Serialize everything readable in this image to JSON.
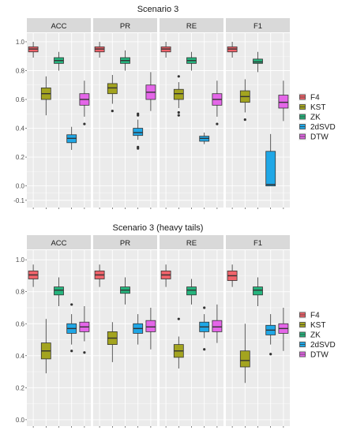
{
  "chart_data": [
    {
      "type": "box",
      "title": "Scenario 3",
      "facets": [
        "ACC",
        "PR",
        "RE",
        "F1"
      ],
      "methods": [
        "F4",
        "KST",
        "ZK",
        "2dSVD",
        "DTW"
      ],
      "ylim": [
        -0.15,
        1.06
      ],
      "yticks": [
        "-0.1",
        "0.0",
        "0.2",
        "0.4",
        "0.6",
        "0.8",
        "1.0"
      ],
      "boxes": {
        "ACC": [
          {
            "min": 0.89,
            "q1": 0.93,
            "median": 0.95,
            "q3": 0.965,
            "max": 1.0,
            "outliers": []
          },
          {
            "min": 0.49,
            "q1": 0.6,
            "median": 0.64,
            "q3": 0.68,
            "max": 0.76,
            "outliers": []
          },
          {
            "min": 0.8,
            "q1": 0.85,
            "median": 0.87,
            "q3": 0.89,
            "max": 0.93,
            "outliers": []
          },
          {
            "min": 0.25,
            "q1": 0.3,
            "median": 0.33,
            "q3": 0.355,
            "max": 0.41,
            "outliers": []
          },
          {
            "min": 0.48,
            "q1": 0.56,
            "median": 0.6,
            "q3": 0.64,
            "max": 0.73,
            "outliers": [
              0.43
            ]
          }
        ],
        "PR": [
          {
            "min": 0.89,
            "q1": 0.93,
            "median": 0.95,
            "q3": 0.965,
            "max": 1.0,
            "outliers": []
          },
          {
            "min": 0.57,
            "q1": 0.64,
            "median": 0.68,
            "q3": 0.71,
            "max": 0.77,
            "outliers": [
              0.52
            ]
          },
          {
            "min": 0.8,
            "q1": 0.85,
            "median": 0.87,
            "q3": 0.89,
            "max": 0.94,
            "outliers": []
          },
          {
            "min": 0.32,
            "q1": 0.35,
            "median": 0.37,
            "q3": 0.4,
            "max": 0.46,
            "outliers": [
              0.49,
              0.5,
              0.27,
              0.26
            ]
          },
          {
            "min": 0.52,
            "q1": 0.6,
            "median": 0.65,
            "q3": 0.7,
            "max": 0.79,
            "outliers": []
          }
        ],
        "RE": [
          {
            "min": 0.89,
            "q1": 0.93,
            "median": 0.95,
            "q3": 0.965,
            "max": 1.0,
            "outliers": []
          },
          {
            "min": 0.54,
            "q1": 0.6,
            "median": 0.64,
            "q3": 0.67,
            "max": 0.72,
            "outliers": [
              0.76,
              0.51,
              0.49
            ]
          },
          {
            "min": 0.8,
            "q1": 0.85,
            "median": 0.87,
            "q3": 0.89,
            "max": 0.93,
            "outliers": []
          },
          {
            "min": 0.29,
            "q1": 0.31,
            "median": 0.33,
            "q3": 0.345,
            "max": 0.37,
            "outliers": []
          },
          {
            "min": 0.48,
            "q1": 0.56,
            "median": 0.6,
            "q3": 0.64,
            "max": 0.73,
            "outliers": [
              0.43
            ]
          }
        ],
        "F1": [
          {
            "min": 0.89,
            "q1": 0.93,
            "median": 0.95,
            "q3": 0.965,
            "max": 1.0,
            "outliers": []
          },
          {
            "min": 0.51,
            "q1": 0.58,
            "median": 0.62,
            "q3": 0.66,
            "max": 0.74,
            "outliers": [
              0.46
            ]
          },
          {
            "min": 0.79,
            "q1": 0.85,
            "median": 0.86,
            "q3": 0.88,
            "max": 0.93,
            "outliers": []
          },
          {
            "min": 0.0,
            "q1": 0.0,
            "median": 0.01,
            "q3": 0.24,
            "max": 0.36,
            "outliers": []
          },
          {
            "min": 0.45,
            "q1": 0.54,
            "median": 0.58,
            "q3": 0.63,
            "max": 0.73,
            "outliers": []
          }
        ]
      }
    },
    {
      "type": "box",
      "title": "Scenario 3 (heavy tails)",
      "facets": [
        "ACC",
        "PR",
        "RE",
        "F1"
      ],
      "methods": [
        "F4",
        "KST",
        "ZK",
        "2dSVD",
        "DTW"
      ],
      "ylim": [
        -0.04,
        1.06
      ],
      "yticks": [
        "0.0",
        "0.2",
        "0.4",
        "0.6",
        "0.8",
        "1.0"
      ],
      "boxes": {
        "ACC": [
          {
            "min": 0.83,
            "q1": 0.88,
            "median": 0.905,
            "q3": 0.93,
            "max": 0.97,
            "outliers": []
          },
          {
            "min": 0.29,
            "q1": 0.38,
            "median": 0.43,
            "q3": 0.48,
            "max": 0.63,
            "outliers": []
          },
          {
            "min": 0.71,
            "q1": 0.78,
            "median": 0.81,
            "q3": 0.83,
            "max": 0.89,
            "outliers": []
          },
          {
            "min": 0.47,
            "q1": 0.54,
            "median": 0.57,
            "q3": 0.6,
            "max": 0.66,
            "outliers": [
              0.72,
              0.43
            ]
          },
          {
            "min": 0.49,
            "q1": 0.55,
            "median": 0.58,
            "q3": 0.61,
            "max": 0.71,
            "outliers": [
              0.42
            ]
          }
        ],
        "PR": [
          {
            "min": 0.83,
            "q1": 0.88,
            "median": 0.905,
            "q3": 0.93,
            "max": 0.97,
            "outliers": []
          },
          {
            "min": 0.36,
            "q1": 0.47,
            "median": 0.51,
            "q3": 0.55,
            "max": 0.61,
            "outliers": []
          },
          {
            "min": 0.72,
            "q1": 0.79,
            "median": 0.81,
            "q3": 0.83,
            "max": 0.89,
            "outliers": []
          },
          {
            "min": 0.47,
            "q1": 0.54,
            "median": 0.57,
            "q3": 0.6,
            "max": 0.66,
            "outliers": []
          },
          {
            "min": 0.44,
            "q1": 0.55,
            "median": 0.58,
            "q3": 0.62,
            "max": 0.7,
            "outliers": []
          }
        ],
        "RE": [
          {
            "min": 0.83,
            "q1": 0.88,
            "median": 0.905,
            "q3": 0.93,
            "max": 0.97,
            "outliers": []
          },
          {
            "min": 0.32,
            "q1": 0.39,
            "median": 0.43,
            "q3": 0.47,
            "max": 0.52,
            "outliers": [
              0.63
            ]
          },
          {
            "min": 0.72,
            "q1": 0.78,
            "median": 0.81,
            "q3": 0.83,
            "max": 0.88,
            "outliers": []
          },
          {
            "min": 0.51,
            "q1": 0.55,
            "median": 0.58,
            "q3": 0.61,
            "max": 0.66,
            "outliers": [
              0.7,
              0.44
            ]
          },
          {
            "min": 0.48,
            "q1": 0.55,
            "median": 0.58,
            "q3": 0.62,
            "max": 0.72,
            "outliers": []
          }
        ],
        "F1": [
          {
            "min": 0.83,
            "q1": 0.87,
            "median": 0.9,
            "q3": 0.93,
            "max": 0.97,
            "outliers": []
          },
          {
            "min": 0.23,
            "q1": 0.33,
            "median": 0.37,
            "q3": 0.43,
            "max": 0.6,
            "outliers": []
          },
          {
            "min": 0.71,
            "q1": 0.78,
            "median": 0.81,
            "q3": 0.83,
            "max": 0.89,
            "outliers": []
          },
          {
            "min": 0.47,
            "q1": 0.53,
            "median": 0.56,
            "q3": 0.59,
            "max": 0.66,
            "outliers": [
              0.41
            ]
          },
          {
            "min": 0.43,
            "q1": 0.54,
            "median": 0.57,
            "q3": 0.6,
            "max": 0.7,
            "outliers": []
          }
        ]
      }
    }
  ],
  "legend": {
    "position": "right",
    "entries": [
      "F4",
      "KST",
      "ZK",
      "2dSVD",
      "DTW"
    ],
    "colors": [
      "#f0636b",
      "#a3a41f",
      "#25b47d",
      "#1fa7e6",
      "#e466e8"
    ]
  },
  "style": {
    "panel_background": "#ebebeb",
    "strip_background": "#d9d9d9",
    "grid_color": "#ffffff",
    "grid": true
  }
}
